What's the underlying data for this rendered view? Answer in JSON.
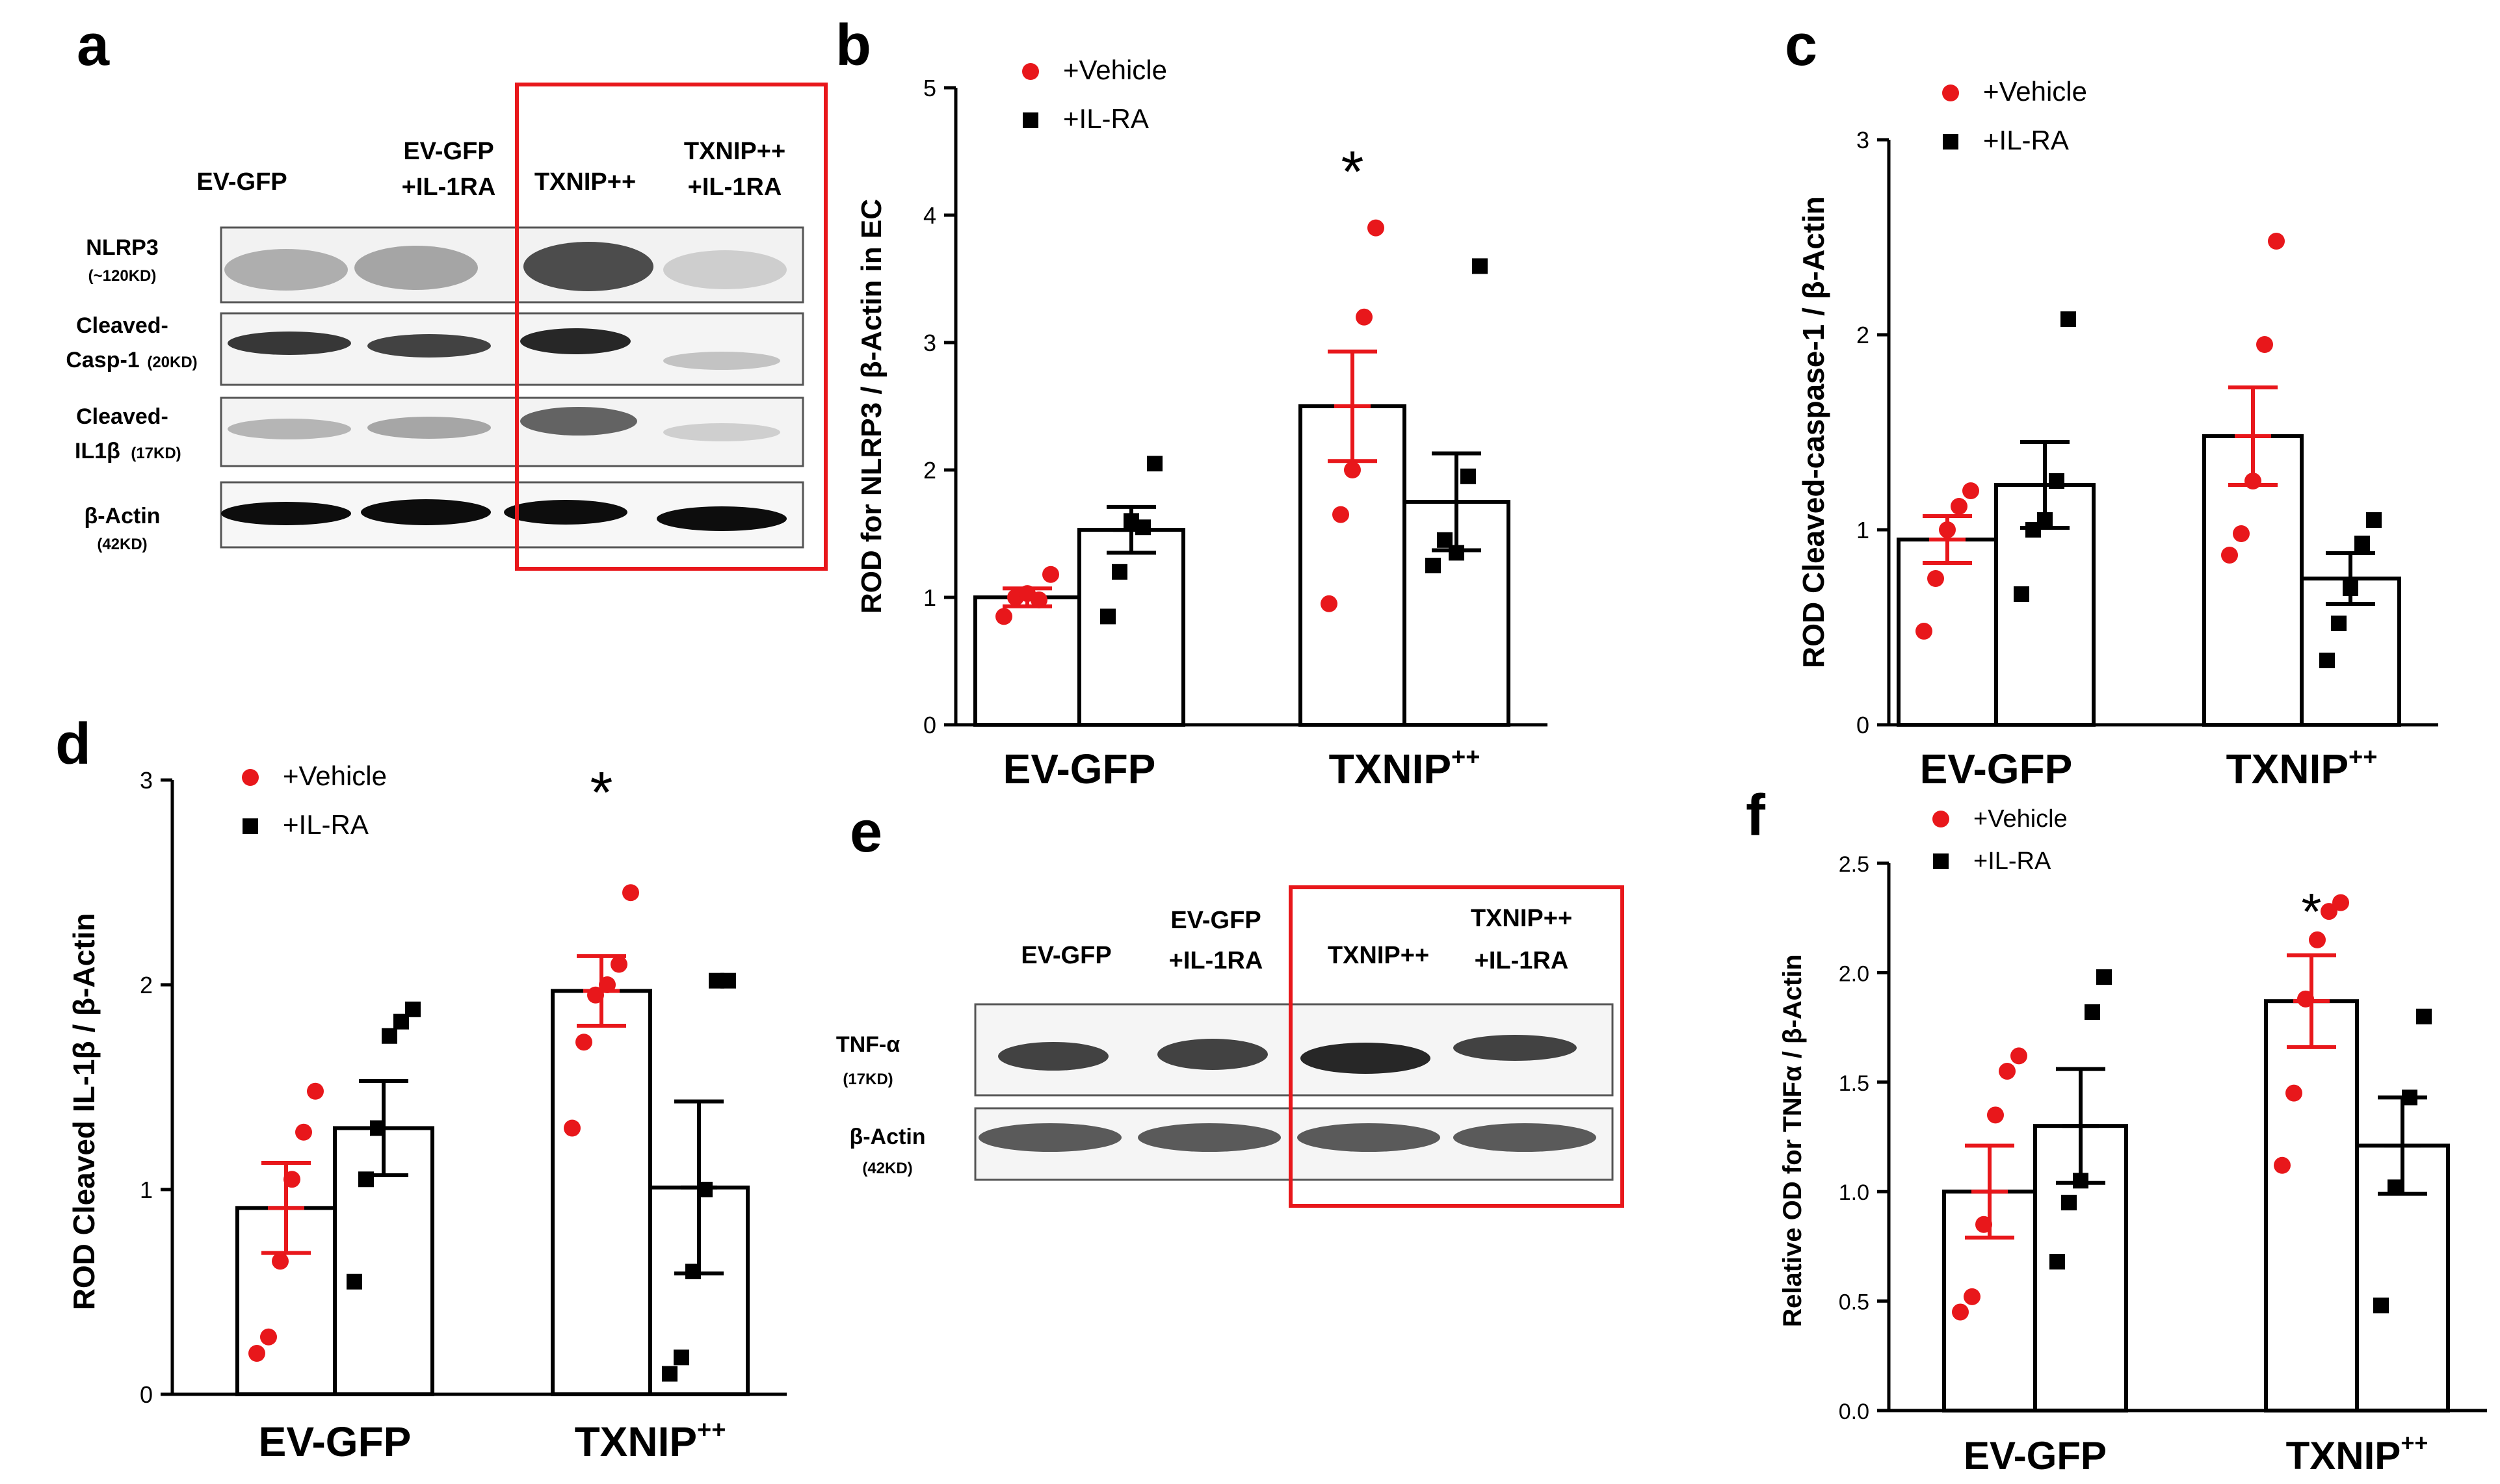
{
  "panels": {
    "a": "a",
    "b": "b",
    "c": "c",
    "d": "d",
    "e": "e",
    "f": "f"
  },
  "western_a": {
    "lanes": [
      {
        "l1": "EV-GFP",
        "l2": ""
      },
      {
        "l1": "EV-GFP",
        "l2": "+IL-1RA"
      },
      {
        "l1": "TXNIP++",
        "l2": ""
      },
      {
        "l1": "TXNIP++",
        "l2": "+IL-1RA"
      }
    ],
    "rows": [
      {
        "name": "NLRP3",
        "sub": "(~120KD)"
      },
      {
        "name": "Cleaved-",
        "name2": "Casp-1",
        "sub": "(20KD)"
      },
      {
        "name": "Cleaved-",
        "name2": "IL1β",
        "sub": "(17KD)"
      },
      {
        "name": "β-Actin",
        "sub": "(42KD)"
      }
    ]
  },
  "western_e": {
    "lanes": [
      {
        "l1": "EV-GFP",
        "l2": ""
      },
      {
        "l1": "EV-GFP",
        "l2": "+IL-1RA"
      },
      {
        "l1": "TXNIP++",
        "l2": ""
      },
      {
        "l1": "TXNIP++",
        "l2": "+IL-1RA"
      }
    ],
    "rows": [
      {
        "name": "TNF-α",
        "sub": "(17KD)"
      },
      {
        "name": "β-Actin",
        "sub": "(42KD)"
      }
    ]
  },
  "colors": {
    "vehicle": "#e8171b",
    "ilra": "#000000",
    "box": "#e8171b"
  },
  "chart_data": [
    {
      "id": "b",
      "type": "bar",
      "categories": [
        "EV-GFP",
        "TXNIP++"
      ],
      "ylabel": "ROD for NLRP3 / β-Actin in EC",
      "ylim": [
        0,
        5
      ],
      "yticks": [
        "0",
        "1",
        "2",
        "3",
        "4",
        "5"
      ],
      "legend": [
        "+Vehicle",
        "+IL-RA"
      ],
      "significance": [
        "",
        "*"
      ],
      "series": [
        {
          "name": "+Vehicle",
          "values": [
            1.0,
            2.5
          ],
          "sem": [
            0.07,
            0.43
          ],
          "points": [
            [
              0.85,
              1.0,
              1.03,
              0.98,
              1.18
            ],
            [
              0.95,
              1.65,
              2.0,
              3.2,
              3.9
            ]
          ]
        },
        {
          "name": "+IL-RA",
          "values": [
            1.53,
            1.75
          ],
          "sem": [
            0.18,
            0.38
          ],
          "points": [
            [
              0.85,
              1.2,
              1.6,
              1.55,
              2.05
            ],
            [
              1.25,
              1.45,
              1.35,
              1.95,
              3.6
            ]
          ]
        }
      ]
    },
    {
      "id": "c",
      "type": "bar",
      "categories": [
        "EV-GFP",
        "TXNIP++"
      ],
      "ylabel": "ROD Cleaved-caspase-1 / β-Actin",
      "ylim": [
        0,
        3
      ],
      "yticks": [
        "0",
        "1",
        "2",
        "3"
      ],
      "legend": [
        "+Vehicle",
        "+IL-RA"
      ],
      "significance": [
        "",
        ""
      ],
      "series": [
        {
          "name": "+Vehicle",
          "values": [
            0.95,
            1.48
          ],
          "sem": [
            0.12,
            0.25
          ],
          "points": [
            [
              0.48,
              0.75,
              1.0,
              1.12,
              1.2
            ],
            [
              0.87,
              0.98,
              1.25,
              1.95,
              2.48
            ]
          ]
        },
        {
          "name": "+IL-RA",
          "values": [
            1.23,
            0.75
          ],
          "sem": [
            0.22,
            0.13
          ],
          "points": [
            [
              0.67,
              1.0,
              1.05,
              1.25,
              2.08
            ],
            [
              0.33,
              0.52,
              0.7,
              0.93,
              1.05
            ]
          ]
        }
      ]
    },
    {
      "id": "d",
      "type": "bar",
      "categories": [
        "EV-GFP",
        "TXNIP++"
      ],
      "ylabel": "ROD Cleaved IL-1β / β-Actin",
      "ylim": [
        0,
        3
      ],
      "yticks": [
        "0",
        "1",
        "2",
        "3"
      ],
      "legend": [
        "+Vehicle",
        "+IL-RA"
      ],
      "significance": [
        "",
        "*"
      ],
      "series": [
        {
          "name": "+Vehicle",
          "values": [
            0.91,
            1.97
          ],
          "sem": [
            0.22,
            0.17
          ],
          "points": [
            [
              0.2,
              0.28,
              0.65,
              1.05,
              1.28,
              1.48
            ],
            [
              1.3,
              1.72,
              1.95,
              2.0,
              2.1,
              2.45
            ]
          ]
        },
        {
          "name": "+IL-RA",
          "values": [
            1.3,
            1.01
          ],
          "sem": [
            0.23,
            0.42
          ],
          "points": [
            [
              0.55,
              1.05,
              1.3,
              1.75,
              1.82,
              1.88
            ],
            [
              0.1,
              0.18,
              0.6,
              1.0,
              2.02,
              2.02
            ]
          ]
        }
      ]
    },
    {
      "id": "f",
      "type": "bar",
      "categories": [
        "EV-GFP",
        "TXNIP++"
      ],
      "ylabel": "Relative OD for TNFα / β-Actin",
      "ylim": [
        0,
        2.5
      ],
      "yticks": [
        "0.0",
        "0.5",
        "1.0",
        "1.5",
        "2.0",
        "2.5"
      ],
      "legend": [
        "+Vehicle",
        "+IL-RA"
      ],
      "significance": [
        "",
        "*"
      ],
      "series": [
        {
          "name": "+Vehicle",
          "values": [
            1.0,
            1.87
          ],
          "sem": [
            0.21,
            0.21
          ],
          "points": [
            [
              0.45,
              0.52,
              0.85,
              1.35,
              1.55,
              1.62
            ],
            [
              1.12,
              1.45,
              1.88,
              2.15,
              2.28,
              2.32
            ]
          ]
        },
        {
          "name": "+IL-RA",
          "values": [
            1.3,
            1.21
          ],
          "sem": [
            0.26,
            0.22
          ],
          "points": [
            [
              0.68,
              0.95,
              1.05,
              1.82,
              1.98
            ],
            [
              0.48,
              1.02,
              1.43,
              1.8
            ]
          ]
        }
      ]
    }
  ]
}
